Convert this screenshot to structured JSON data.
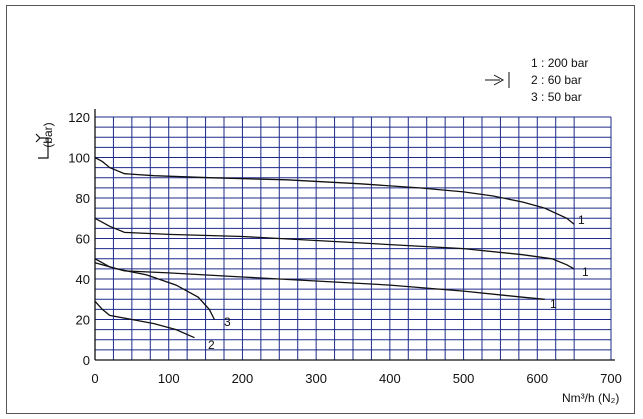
{
  "chart_data": {
    "type": "line",
    "xlabel": "Nm³/h (N₂)",
    "ylabel": "(bar)",
    "xlim": [
      0,
      700
    ],
    "ylim": [
      0,
      120
    ],
    "xticks": [
      "0",
      "100",
      "200",
      "300",
      "400",
      "500",
      "600",
      "700"
    ],
    "yticks": [
      "0",
      "20",
      "40",
      "60",
      "80",
      "100",
      "120"
    ],
    "grid": true,
    "legend": {
      "position": "top-right",
      "entries": [
        {
          "label": "1",
          "value": "200 bar"
        },
        {
          "label": "2",
          "value": "60 bar"
        },
        {
          "label": "3",
          "value": "50 bar"
        }
      ]
    },
    "series": [
      {
        "label": "1",
        "x": [
          0,
          10,
          20,
          40,
          80,
          160,
          260,
          360,
          440,
          500,
          540,
          580,
          610,
          640,
          650
        ],
        "y": [
          100,
          98,
          95,
          92,
          91,
          90,
          89,
          87,
          85,
          83,
          81,
          78,
          75,
          70,
          67
        ]
      },
      {
        "label": "1",
        "x": [
          0,
          10,
          20,
          40,
          100,
          200,
          300,
          400,
          500,
          580,
          620,
          640,
          650
        ],
        "y": [
          70,
          68,
          66,
          63,
          62,
          61,
          59,
          57,
          55,
          52,
          50,
          47,
          45
        ]
      },
      {
        "label": "1",
        "x": [
          0,
          10,
          20,
          40,
          100,
          200,
          300,
          400,
          500,
          580,
          610
        ],
        "y": [
          50,
          48,
          46,
          44,
          43,
          41,
          39,
          37,
          34,
          31,
          30
        ]
      },
      {
        "label": "2",
        "x": [
          0,
          10,
          20,
          50,
          80,
          110,
          135
        ],
        "y": [
          29,
          25,
          22,
          20,
          18,
          15,
          11
        ]
      },
      {
        "label": "3",
        "x": [
          0,
          30,
          70,
          110,
          140,
          155,
          162
        ],
        "y": [
          48,
          45,
          42,
          37,
          31,
          25,
          20
        ]
      }
    ],
    "annotations": [
      "1",
      "1",
      "1",
      "2",
      "3"
    ]
  }
}
